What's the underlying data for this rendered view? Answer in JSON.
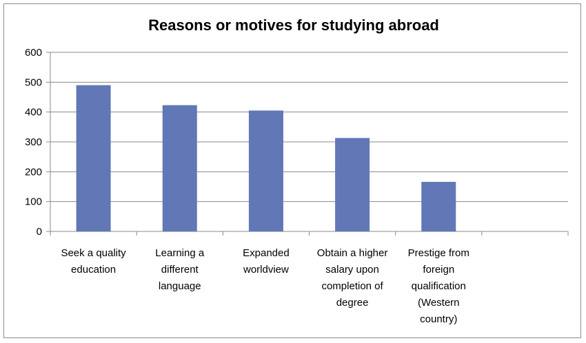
{
  "chart_data": {
    "type": "bar",
    "title": "Reasons or motives for studying abroad",
    "xlabel": "",
    "ylabel": "",
    "categories": [
      "Seek a quality education",
      "Learning a different language",
      "Expanded worldview",
      "Obtain a higher salary upon completion of degree",
      "Prestige from foreign qualification (Western country)"
    ],
    "category_lines": [
      [
        "Seek a quality",
        "education"
      ],
      [
        "Learning a",
        "different",
        "language"
      ],
      [
        "Expanded",
        "worldview"
      ],
      [
        "Obtain a higher",
        "salary upon",
        "completion of",
        "degree"
      ],
      [
        "Prestige from",
        "foreign",
        "qualification",
        "(Western",
        "country)"
      ]
    ],
    "values": [
      490,
      423,
      405,
      313,
      166
    ],
    "ylim": [
      0,
      600
    ],
    "yticks": [
      0,
      100,
      200,
      300,
      400,
      500,
      600
    ],
    "grid": true,
    "legend": "none",
    "bar_color": "#6177b6",
    "grid_color": "#888888"
  }
}
